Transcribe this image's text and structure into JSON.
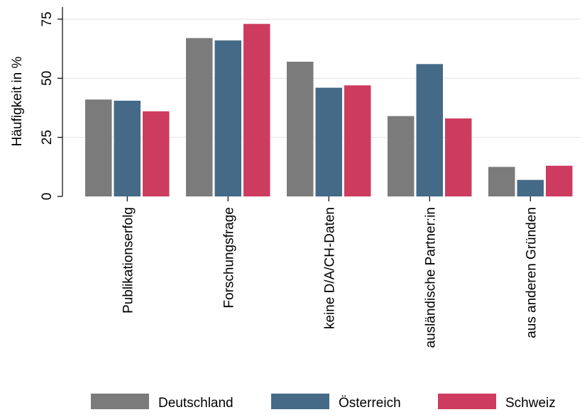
{
  "chart_data": {
    "type": "bar",
    "title": "",
    "xlabel": "",
    "ylabel": "Häufigkeit in %",
    "ylim": [
      0,
      80
    ],
    "yticks": [
      0,
      25,
      50,
      75
    ],
    "grid": true,
    "legend_position": "bottom",
    "categories": [
      "Publikationserfolg",
      "Forschungsfrage",
      "keine D/A/CH-Daten",
      "ausländische Partner:in",
      "aus anderen Gründen"
    ],
    "series": [
      {
        "name": "Deutschland",
        "color": "#7b7b7b",
        "values": [
          41,
          67,
          57,
          34,
          12.5
        ]
      },
      {
        "name": "Österreich",
        "color": "#456a88",
        "values": [
          40.5,
          66,
          46,
          56,
          7
        ]
      },
      {
        "name": "Schweiz",
        "color": "#cd3c5f",
        "values": [
          36,
          73,
          47,
          33,
          13
        ]
      }
    ]
  }
}
